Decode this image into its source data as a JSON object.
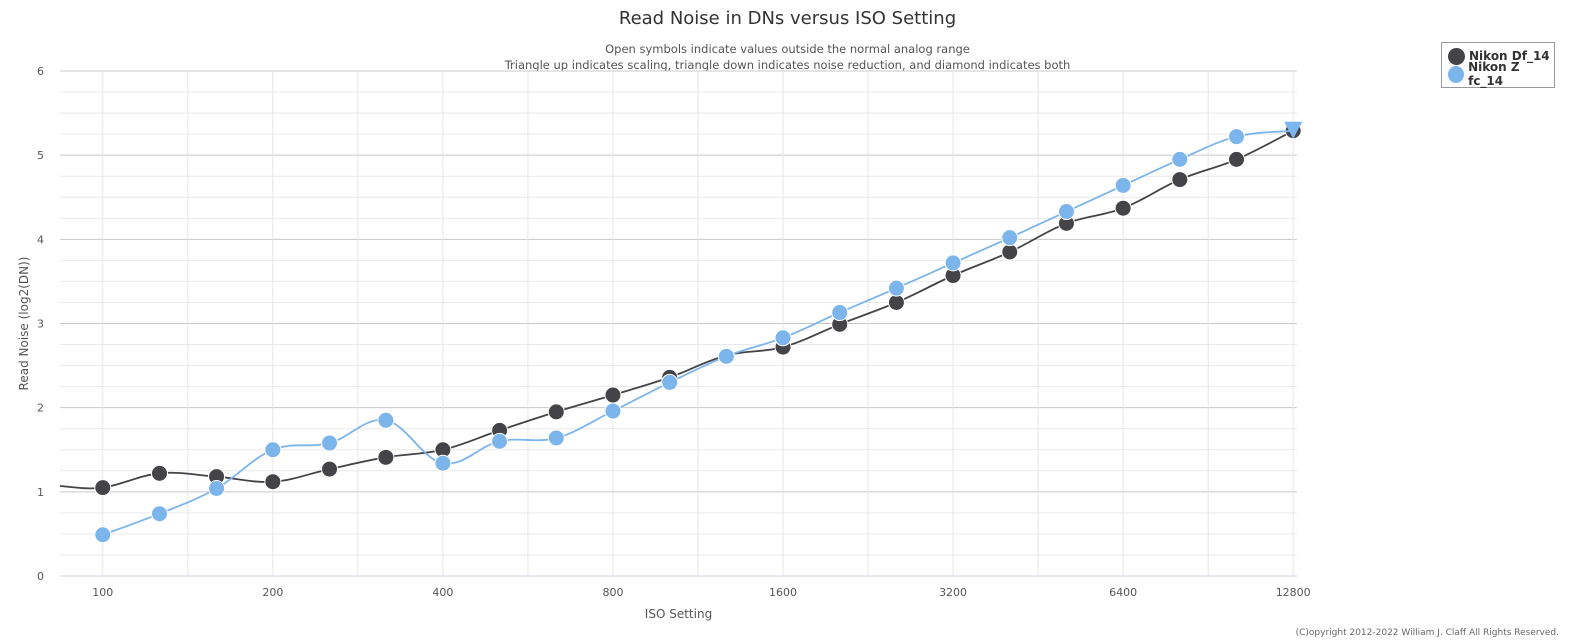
{
  "chart_data": {
    "type": "line",
    "title": "Read Noise in DNs versus ISO Setting",
    "subtitle_lines": [
      "Open symbols indicate values outside the normal analog range",
      "Triangle up indicates scaling, triangle down indicates noise reduction, and diamond indicates both"
    ],
    "xlabel": "ISO Setting",
    "ylabel": "Read Noise (log2(DN))",
    "x_scale": "log2",
    "x_ticks": [
      "100",
      "200",
      "400",
      "800",
      "1600",
      "3200",
      "6400",
      "12800"
    ],
    "x_tick_values": [
      100,
      200,
      400,
      800,
      1600,
      3200,
      6400,
      12800
    ],
    "xlim": [
      84,
      13000
    ],
    "y_ticks": [
      "0",
      "1",
      "2",
      "3",
      "4",
      "5",
      "6"
    ],
    "ylim": [
      0,
      6
    ],
    "grid": true,
    "legend_position": "top-right",
    "series": [
      {
        "name": "Nikon Df_14",
        "color": "#434348",
        "points": [
          {
            "x": 100,
            "y": 1.05
          },
          {
            "x": 126,
            "y": 1.22
          },
          {
            "x": 159,
            "y": 1.18
          },
          {
            "x": 200,
            "y": 1.12
          },
          {
            "x": 252,
            "y": 1.27
          },
          {
            "x": 317,
            "y": 1.41
          },
          {
            "x": 400,
            "y": 1.5
          },
          {
            "x": 504,
            "y": 1.73
          },
          {
            "x": 635,
            "y": 1.95
          },
          {
            "x": 800,
            "y": 2.15
          },
          {
            "x": 1008,
            "y": 2.36
          },
          {
            "x": 1270,
            "y": 2.62
          },
          {
            "x": 1600,
            "y": 2.72
          },
          {
            "x": 2016,
            "y": 2.99
          },
          {
            "x": 2540,
            "y": 3.25
          },
          {
            "x": 3200,
            "y": 3.57
          },
          {
            "x": 4032,
            "y": 3.85
          },
          {
            "x": 5080,
            "y": 4.19
          },
          {
            "x": 6400,
            "y": 4.37
          },
          {
            "x": 8063,
            "y": 4.71
          },
          {
            "x": 10159,
            "y": 4.95
          },
          {
            "x": 12800,
            "y": 5.29
          }
        ]
      },
      {
        "name": "Nikon Z fc_14",
        "color": "#7cb5ec",
        "points": [
          {
            "x": 100,
            "y": 0.49
          },
          {
            "x": 126,
            "y": 0.74
          },
          {
            "x": 159,
            "y": 1.04
          },
          {
            "x": 200,
            "y": 1.5
          },
          {
            "x": 252,
            "y": 1.58
          },
          {
            "x": 317,
            "y": 1.85
          },
          {
            "x": 400,
            "y": 1.34
          },
          {
            "x": 504,
            "y": 1.6
          },
          {
            "x": 635,
            "y": 1.64
          },
          {
            "x": 800,
            "y": 1.96
          },
          {
            "x": 1008,
            "y": 2.3
          },
          {
            "x": 1270,
            "y": 2.61
          },
          {
            "x": 1600,
            "y": 2.83
          },
          {
            "x": 2016,
            "y": 3.13
          },
          {
            "x": 2540,
            "y": 3.42
          },
          {
            "x": 3200,
            "y": 3.72
          },
          {
            "x": 4032,
            "y": 4.02
          },
          {
            "x": 5080,
            "y": 4.33
          },
          {
            "x": 6400,
            "y": 4.64
          },
          {
            "x": 8063,
            "y": 4.95
          },
          {
            "x": 10159,
            "y": 5.22
          },
          {
            "x": 12800,
            "y": 5.29,
            "marker": "triangle-down"
          }
        ]
      }
    ]
  },
  "copyright": "(C)opyright 2012-2022 William J. Claff All Rights Reserved."
}
